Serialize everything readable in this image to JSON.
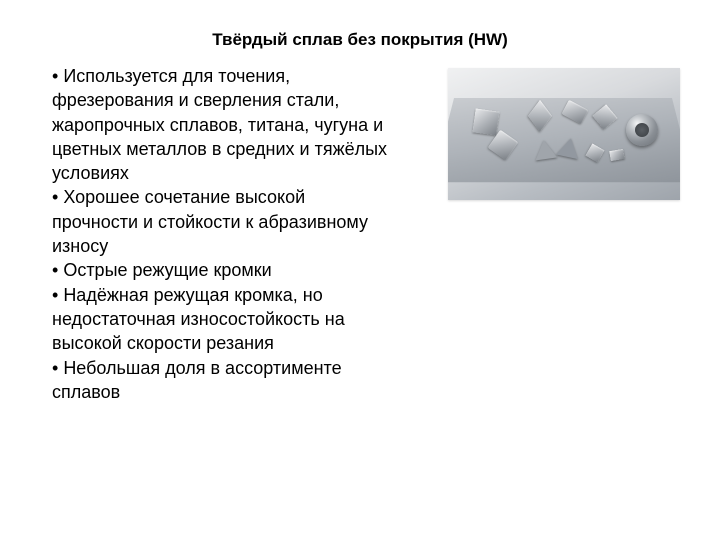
{
  "title": "Твёрдый сплав без покрытия (HW)",
  "text_color": "#000000",
  "background_color": "#ffffff",
  "title_fontsize": 17,
  "body_fontsize": 18,
  "bullets": [
    "Используется для точения, фрезерования и сверления стали, жаропрочных сплавов, титана, чугуна и цветных металлов в средних и тяжёлых условиях",
    "Хорошее сочетание высокой прочности и стойкости к абразивному износу",
    "Острые режущие кромки",
    "Надёжная режущая кромка, но недостаточная износостойкость на высокой скорости резания",
    "Небольшая доля в ассортименте сплавов"
  ],
  "image": {
    "description": "metal-cutting-inserts-on-plate",
    "plate_color_light": "#c9ccd0",
    "plate_color_dark": "#8e949b",
    "insert_color_light": "#e8e9eb",
    "insert_color_dark": "#7c8187"
  }
}
